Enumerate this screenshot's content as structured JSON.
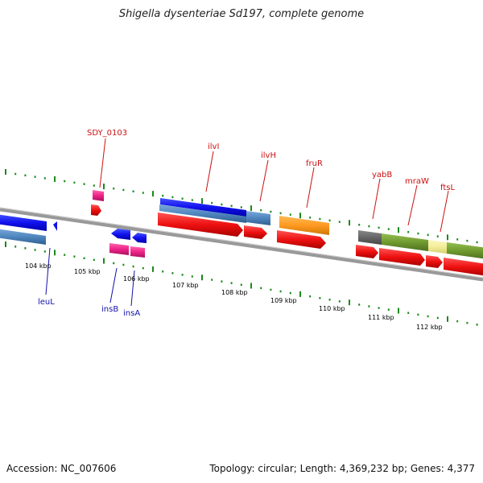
{
  "title": "Shigella dysenteriae Sd197, complete genome",
  "footer": {
    "accession": "Accession: NC_007606",
    "topology": "Topology: circular; Length: 4,369,232 bp; Genes: 4,377"
  },
  "scale": {
    "ticks": [
      "104 kbp",
      "105 kbp",
      "106 kbp",
      "107 kbp",
      "108 kbp",
      "109 kbp",
      "110 kbp",
      "111 kbp",
      "112 kbp"
    ]
  },
  "genes_top": [
    "SDY_0103",
    "ilvI",
    "ilvH",
    "fruR",
    "yabB",
    "mraW",
    "ftsL"
  ],
  "genes_bottom": [
    "leuL",
    "insB",
    "insA"
  ],
  "colors": {
    "backbone": "#888888",
    "forward_cds": "#ee1111",
    "reverse_cds": "#1111ee",
    "steelblue": "#4f86bf",
    "orange": "#ff9922",
    "olive": "#6f9a2f",
    "pale_yellow": "#f3ee9a",
    "gray": "#666666",
    "pink": "#ee2288",
    "tick_green": "#1a8a1a"
  }
}
